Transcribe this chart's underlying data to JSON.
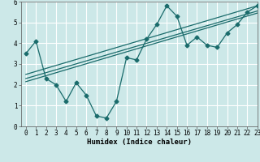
{
  "title": "",
  "xlabel": "Humidex (Indice chaleur)",
  "ylabel": "",
  "background_color": "#cce8e8",
  "grid_color": "#ffffff",
  "line_color": "#1a6b6b",
  "xlim": [
    -0.5,
    23
  ],
  "ylim": [
    0,
    6
  ],
  "xticks": [
    0,
    1,
    2,
    3,
    4,
    5,
    6,
    7,
    8,
    9,
    10,
    11,
    12,
    13,
    14,
    15,
    16,
    17,
    18,
    19,
    20,
    21,
    22,
    23
  ],
  "yticks": [
    0,
    1,
    2,
    3,
    4,
    5,
    6
  ],
  "series1_x": [
    0,
    1,
    2,
    3,
    4,
    5,
    6,
    7,
    8,
    9,
    10,
    11,
    12,
    13,
    14,
    15,
    16,
    17,
    18,
    19,
    20,
    21,
    22,
    23
  ],
  "series1_y": [
    3.5,
    4.1,
    2.3,
    2.0,
    1.2,
    2.1,
    1.5,
    0.5,
    0.4,
    1.2,
    3.3,
    3.2,
    4.2,
    4.9,
    5.8,
    5.3,
    3.9,
    4.3,
    3.9,
    3.8,
    4.5,
    4.9,
    5.5,
    5.8
  ],
  "series2_x": [
    0,
    23
  ],
  "series2_y": [
    2.5,
    5.8
  ],
  "series3_x": [
    0,
    23
  ],
  "series3_y": [
    2.3,
    5.55
  ],
  "series4_x": [
    0,
    23
  ],
  "series4_y": [
    2.15,
    5.45
  ],
  "tick_fontsize": 5.5,
  "xlabel_fontsize": 6.5,
  "marker_size": 2.5,
  "line_width": 0.9
}
